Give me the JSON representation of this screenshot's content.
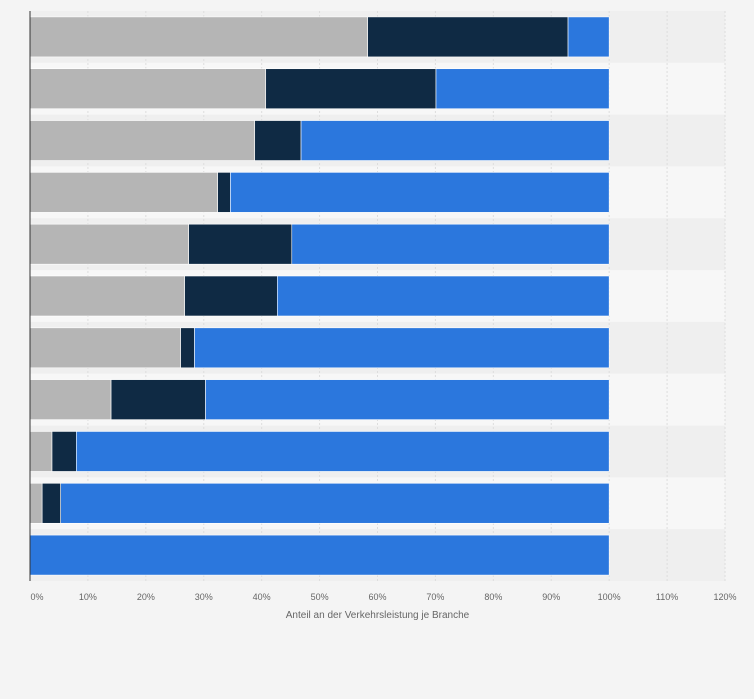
{
  "chart_data": {
    "type": "bar",
    "orientation": "horizontal",
    "stacked": true,
    "categories": [
      "",
      "",
      "",
      "",
      "",
      "",
      "",
      "",
      "",
      "",
      ""
    ],
    "series": [
      {
        "color": "#b5b5b5",
        "values": [
          58.3,
          40.7,
          38.8,
          32.4,
          27.4,
          26.7,
          26.0,
          14.0,
          3.8,
          2.1,
          0
        ]
      },
      {
        "color": "#0f2a44",
        "values": [
          34.6,
          29.4,
          8.0,
          2.2,
          17.8,
          16.0,
          2.4,
          16.3,
          4.2,
          3.2,
          0
        ]
      },
      {
        "color": "#2b77dd",
        "values": [
          7.1,
          29.9,
          53.2,
          65.4,
          54.8,
          57.3,
          71.6,
          69.7,
          92.0,
          94.7,
          100
        ]
      }
    ],
    "xlabel": "Anteil an der Verkehrsleistung je Branche",
    "ylabel": "",
    "xlim": [
      0,
      120
    ],
    "xticks": [
      "0%",
      "10%",
      "20%",
      "30%",
      "40%",
      "50%",
      "60%",
      "70%",
      "80%",
      "90%",
      "100%",
      "110%",
      "120%"
    ],
    "grid": true,
    "legend": "none"
  }
}
